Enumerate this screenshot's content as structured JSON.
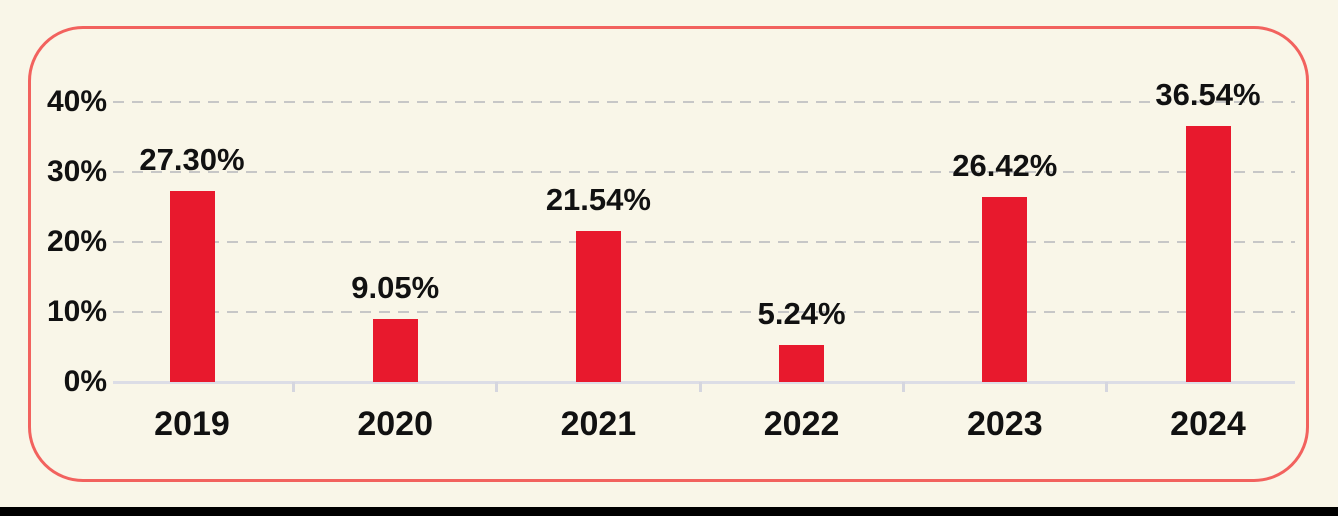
{
  "canvas": {
    "background_color": "#f9f6e8",
    "bottom_band_color": "#000000"
  },
  "card": {
    "border_color": "#f2625e"
  },
  "chart_data": {
    "type": "bar",
    "title": "",
    "categories": [
      "2019",
      "2020",
      "2021",
      "2022",
      "2023",
      "2024"
    ],
    "values": [
      27.3,
      9.05,
      21.54,
      5.24,
      26.42,
      36.54
    ],
    "data_labels": [
      "27.30%",
      "9.05%",
      "21.54%",
      "5.24%",
      "26.42%",
      "36.54%"
    ],
    "y_ticks": [
      {
        "value": 0,
        "label": "0%"
      },
      {
        "value": 10,
        "label": "10%"
      },
      {
        "value": 20,
        "label": "20%"
      },
      {
        "value": 30,
        "label": "30%"
      },
      {
        "value": 40,
        "label": "40%"
      }
    ],
    "ylim": [
      0,
      40
    ],
    "xlabel": "",
    "ylabel": "",
    "legend": "none",
    "grid": "horizontal-dashed",
    "bar_color": "#e8192d",
    "gridline_color": "#c7c7c7",
    "axis_line_color": "#dcdde6",
    "tick_color": "#d5d6df",
    "text_color": "#111111"
  }
}
